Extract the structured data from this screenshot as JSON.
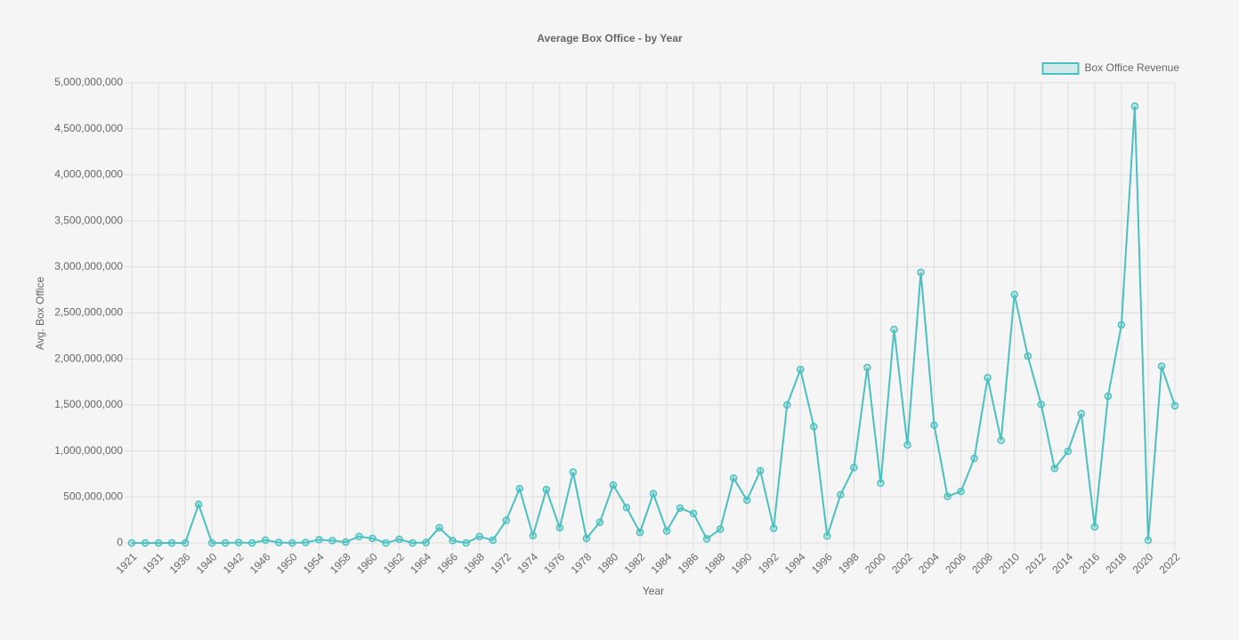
{
  "chart_data": {
    "type": "line",
    "title": "Average Box Office - by Year",
    "x_label": "Year",
    "y_label": "Avg. Box Office",
    "categories": [
      "1921",
      null,
      "1931",
      null,
      "1936",
      null,
      "1940",
      null,
      "1942",
      null,
      "1946",
      null,
      "1950",
      null,
      "1954",
      null,
      "1958",
      null,
      "1960",
      null,
      "1962",
      null,
      "1964",
      null,
      "1966",
      null,
      "1968",
      null,
      "1972",
      null,
      "1974",
      null,
      "1976",
      null,
      "1978",
      null,
      "1980",
      null,
      "1982",
      null,
      "1984",
      null,
      "1986",
      null,
      "1988",
      null,
      "1990",
      null,
      "1992",
      null,
      "1994",
      null,
      "1996",
      null,
      "1998",
      null,
      "2000",
      null,
      "2002",
      null,
      "2004",
      null,
      "2006",
      null,
      "2008",
      null,
      "2010",
      null,
      "2012",
      null,
      "2014",
      null,
      "2016",
      null,
      "2018",
      null,
      "2020",
      null,
      "2022"
    ],
    "series": [
      {
        "name": "Box Office Revenue",
        "color": "#4bc0c0",
        "values": [
          0,
          0,
          0,
          0,
          0,
          420000000,
          0,
          0,
          5000000,
          0,
          30000000,
          5000000,
          0,
          5000000,
          35000000,
          25000000,
          10000000,
          70000000,
          50000000,
          0,
          40000000,
          0,
          5000000,
          165000000,
          25000000,
          0,
          70000000,
          30000000,
          245000000,
          590000000,
          80000000,
          580000000,
          165000000,
          770000000,
          50000000,
          225000000,
          630000000,
          385000000,
          115000000,
          535000000,
          130000000,
          380000000,
          320000000,
          45000000,
          150000000,
          705000000,
          465000000,
          785000000,
          160000000,
          1500000000,
          1885000000,
          1265000000,
          75000000,
          525000000,
          820000000,
          1905000000,
          650000000,
          2320000000,
          1065000000,
          2940000000,
          1280000000,
          505000000,
          560000000,
          920000000,
          1795000000,
          1115000000,
          2700000000,
          2030000000,
          1505000000,
          810000000,
          995000000,
          1405000000,
          175000000,
          1595000000,
          2370000000,
          4745000000,
          30000000,
          1920000000,
          1490000000
        ]
      }
    ],
    "ylim": [
      0,
      5000000000
    ],
    "yticks": [
      0,
      {
        "value": 500000000,
        "label": "500,000,000"
      },
      {
        "value": 1000000000,
        "label": "1,000,000,000"
      },
      {
        "value": 1500000000,
        "label": "1,500,000,000"
      },
      {
        "value": 2000000000,
        "label": "2,000,000,000"
      },
      {
        "value": 2500000000,
        "label": "2,500,000,000"
      },
      {
        "value": 3000000000,
        "label": "3,000,000,000"
      },
      {
        "value": 3500000000,
        "label": "3,500,000,000"
      },
      {
        "value": 4000000000,
        "label": "4,000,000,000"
      },
      {
        "value": 4500000000,
        "label": "4,500,000,000"
      },
      {
        "value": 5000000000,
        "label": "5,000,000,000"
      }
    ],
    "grid": true,
    "legend": "top-right"
  }
}
